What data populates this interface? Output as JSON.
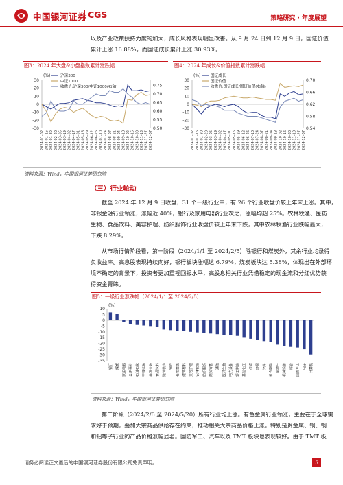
{
  "header": {
    "brand_cn": "中国银河证券",
    "brand_en": "CGS",
    "category": "策略研究 · 年度展望"
  },
  "intro_lines": [
    "以及产业政策扶持力度的加大，成长风格表现明显改善。从 9 月 24 日到 12 月 9 日，国证价值",
    "累计上涨 16.88%，而国证成长累计上涨 30.93%。"
  ],
  "fig3": {
    "title": "图3：2024 年大盘&小盘指数累计涨跌幅",
    "unit": "(%)",
    "legend": [
      "沪深300",
      "中证1000",
      "收盘价:沪深300/中证1000(右轴)"
    ],
    "colors": {
      "a": "#2e3f8f",
      "b": "#c8a86a",
      "c": "#7a8ab8"
    },
    "chart_data": {
      "type": "line",
      "x": [
        "2024-01-02",
        "2024-01-16",
        "2024-01-30",
        "2024-02-20",
        "2024-03-05",
        "2024-03-19",
        "2024-04-02",
        "2024-04-17",
        "2024-05-01",
        "2024-05-15",
        "2024-05-29",
        "2024-06-12",
        "2024-06-26",
        "2024-07-10",
        "2024-07-24",
        "2024-08-07",
        "2024-08-21",
        "2024-09-04",
        "2024-09-18",
        "2024-10-02",
        "2024-10-16",
        "2024-10-30",
        "2024-11-13",
        "2024-11-27",
        "2024-12-07"
      ],
      "yleft_ticks": [
        "30",
        "20",
        "10",
        "0",
        "-10",
        "-20",
        "-30"
      ],
      "yright_ticks": [
        "0.75",
        "0.70",
        "0.65",
        "0.60",
        "0.55",
        "0.50"
      ],
      "ylim_left": [
        -30,
        30
      ],
      "ylim_right": [
        0.5,
        0.78
      ],
      "series": [
        {
          "name": "沪深300",
          "axis": "left",
          "values": [
            0,
            -3,
            -6,
            -2,
            1,
            1,
            2,
            5,
            6,
            7,
            5,
            4,
            2,
            2,
            1,
            -1,
            -3,
            -2,
            -3,
            24,
            17,
            17,
            18,
            16,
            17
          ]
        },
        {
          "name": "中证1000",
          "axis": "left",
          "values": [
            0,
            -9,
            -22,
            -12,
            -6,
            -4,
            -5,
            -10,
            -7,
            -5,
            -9,
            -14,
            -17,
            -15,
            -16,
            -20,
            -21,
            -20,
            -24,
            6,
            5,
            12,
            15,
            11,
            12
          ]
        },
        {
          "name": "收盘价:沪深300/中证1000(右轴)",
          "axis": "right",
          "values": [
            0.57,
            0.59,
            0.66,
            0.61,
            0.6,
            0.6,
            0.61,
            0.66,
            0.64,
            0.64,
            0.66,
            0.68,
            0.7,
            0.69,
            0.69,
            0.72,
            0.71,
            0.71,
            0.73,
            0.7,
            0.68,
            0.65,
            0.64,
            0.65,
            0.64
          ]
        }
      ]
    }
  },
  "fig4": {
    "title": "图4：2024 年成长&价值指数累计涨跌幅",
    "unit": "(%)",
    "legend": [
      "国证成长",
      "国证价值",
      "收盘价:国证成长/国证价值(右轴)"
    ],
    "colors": {
      "a": "#2e3f8f",
      "b": "#c8a86a",
      "c": "#7a8ab8"
    },
    "chart_data": {
      "type": "line",
      "x": [
        "2024-01-02",
        "2024-01-16",
        "2024-01-30",
        "2024-02-20",
        "2024-03-05",
        "2024-03-19",
        "2024-04-02",
        "2024-04-17",
        "2024-05-01",
        "2024-05-15",
        "2024-05-29",
        "2024-06-12",
        "2024-06-26",
        "2024-07-10",
        "2024-07-24",
        "2024-08-07",
        "2024-08-21",
        "2024-09-04",
        "2024-09-18",
        "2024-10-02",
        "2024-10-16",
        "2024-10-30",
        "2024-11-13",
        "2024-11-27",
        "2024-12-07"
      ],
      "yleft_ticks": [
        "30",
        "20",
        "10",
        "0",
        "-10",
        "-20",
        "-30"
      ],
      "yright_ticks": [
        "0.70",
        "0.66",
        "0.62",
        "0.58",
        "0.54"
      ],
      "ylim_left": [
        -30,
        30
      ],
      "ylim_right": [
        0.54,
        0.7
      ],
      "series": [
        {
          "name": "国证成长",
          "axis": "left",
          "values": [
            0,
            -6,
            -12,
            -5,
            -2,
            0,
            -1,
            -3,
            -1,
            0,
            -3,
            -8,
            -11,
            -10,
            -10,
            -14,
            -16,
            -16,
            -18,
            13,
            10,
            14,
            16,
            12,
            13
          ]
        },
        {
          "name": "国证价值",
          "axis": "left",
          "values": [
            0,
            -1,
            -3,
            2,
            4,
            4,
            5,
            8,
            9,
            10,
            9,
            8,
            8,
            9,
            8,
            7,
            6,
            6,
            5,
            26,
            21,
            22,
            23,
            22,
            24
          ]
        },
        {
          "name": "收盘价:国证成长/国证价值(右轴)",
          "axis": "right",
          "values": [
            0.635,
            0.63,
            0.615,
            0.62,
            0.615,
            0.615,
            0.61,
            0.6,
            0.6,
            0.6,
            0.59,
            0.585,
            0.58,
            0.58,
            0.58,
            0.575,
            0.57,
            0.565,
            0.56,
            0.61,
            0.63,
            0.635,
            0.64,
            0.63,
            0.635
          ]
        }
      ]
    }
  },
  "source": "资料来源：Wind，中国银河证券研究院",
  "section_title": "（三）行业轮动",
  "body1_lines": [
    "截至 2024 年 12 月 9 日收盘，31 个一级行业中，有 26 个行业收盘价较上年末上涨。其中，",
    "非银金融行业领涨，涨幅近 40%，银行及家用电器行业次之，涨幅均超 25%。农林牧渔、医药",
    "生物、食品饮料、美容护理、纺织服饰行业收盘价较上年末下跌，其中农林牧渔行业跌幅最大，",
    "下跌 8.29%。"
  ],
  "body2_lines": [
    "从市场行情阶段看，第一阶段（2024/1/1 至 2024/2/5）除银行和煤炭外，其余行业均录得",
    "负收益率。高息股表现持续向好，银行板块涨幅达 6.79%，煤炭板块达 5.38%，体现出在外部环",
    "境不确定的背景下，投资者更加重视回报水平，高股息相关行业凭借稳定的现金流和分红优势获",
    "得资金青睐。"
  ],
  "fig5": {
    "title": "图5：一级行业涨跌幅（2024/1/1 至 2024/2/5）",
    "unit": "(%)",
    "bar_color": "#2e3f8f",
    "chart_data": {
      "type": "bar",
      "categories": [
        "银行",
        "煤炭",
        "家用电器",
        "公用事业",
        "石油石化",
        "交通运输",
        "非银金融",
        "食品饮料",
        "建筑装饰",
        "钢铁",
        "有色金属",
        "建筑材料",
        "美容护理",
        "农林牧渔",
        "纺织服饰",
        "商贸零售",
        "通信",
        "医药生物",
        "电力设备",
        "轻工制造",
        "基础化工",
        "传媒",
        "环保",
        "汽车",
        "社会服务",
        "房地产",
        "机械设备",
        "综合",
        "国防军工",
        "电子",
        "计算机"
      ],
      "values": [
        6.79,
        5.38,
        -1.5,
        -3.2,
        -4.0,
        -4.5,
        -5.0,
        -5.5,
        -8.0,
        -8.5,
        -9.0,
        -9.5,
        -10.0,
        -10.5,
        -11.0,
        -11.5,
        -12.0,
        -12.5,
        -13.0,
        -13.5,
        -14.5,
        -16.0,
        -17.0,
        -18.0,
        -19.0,
        -21.0,
        -22.0,
        -23.0,
        -23.5,
        -25.0,
        -29.5
      ],
      "yticks": [
        "10",
        "5",
        "0",
        "-5",
        "-10",
        "-15",
        "-20",
        "-25",
        "-30",
        "-35"
      ],
      "ylim": [
        -35,
        10
      ]
    }
  },
  "body3_lines": [
    "第二阶段（2024/2/6 至 2024/5/20）所有行业均上涨。有色金属行业领涨，主要在于全球需",
    "求好于预期，叠加大宗商品供给存在约束，推动相关大宗商品价格上涨。特别是贵金属、铜、铜",
    "和铝等子行业的产品价格涨幅显著。国防军工、汽车以及 TMT 板块也表现较好。由于 TMT 板"
  ],
  "footer": "请务必阅读正文最后的中国银河证券股份有限公司免责声明。",
  "page_number": "5"
}
